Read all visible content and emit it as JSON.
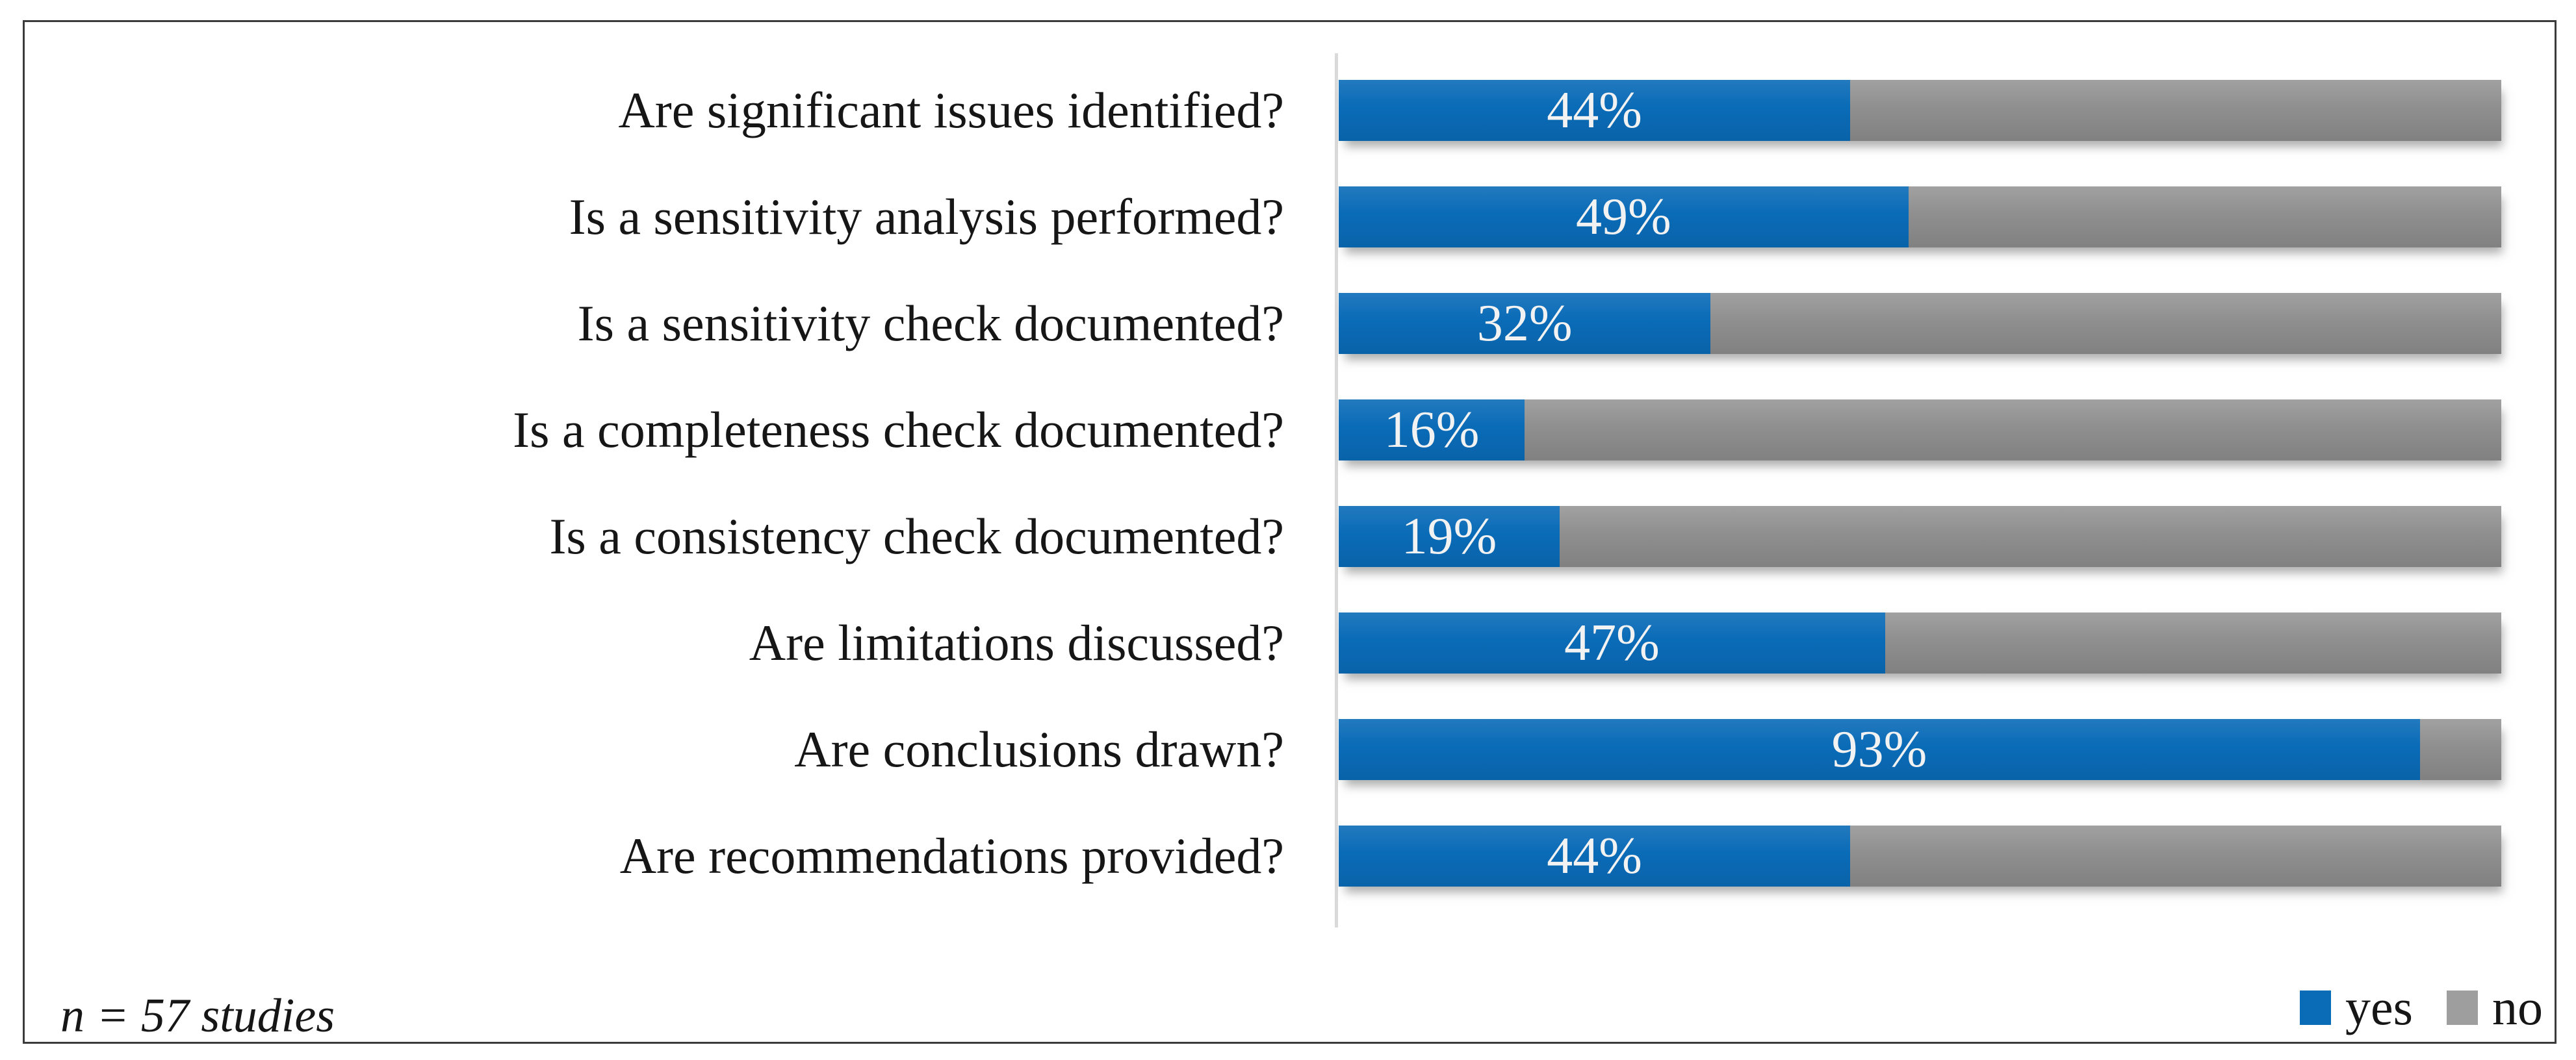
{
  "chart_data": {
    "type": "bar",
    "orientation": "horizontal_stacked",
    "title": "",
    "xlabel": "",
    "ylabel": "",
    "unit": "%",
    "xlim": [
      0,
      100
    ],
    "grid": false,
    "legend_position": "bottom-right",
    "categories": [
      "Are significant issues identified?",
      "Is a sensitivity analysis performed?",
      "Is a sensitivity check documented?",
      "Is a completeness check documented?",
      "Is a consistency check documented?",
      "Are limitations discussed?",
      "Are conclusions drawn?",
      "Are recommendations provided?"
    ],
    "series": [
      {
        "name": "yes",
        "color": "#0a6bb7",
        "values": [
          44,
          49,
          32,
          16,
          19,
          47,
          93,
          44
        ]
      },
      {
        "name": "no",
        "color": "#8f8f8f",
        "values": [
          56,
          51,
          68,
          84,
          81,
          53,
          7,
          56
        ]
      }
    ],
    "value_labels": [
      "44%",
      "49%",
      "32%",
      "16%",
      "19%",
      "47%",
      "93%",
      "44%"
    ],
    "note": "n = 57 studies"
  },
  "legend": {
    "items": [
      {
        "label": "yes",
        "color": "#0a6bb7"
      },
      {
        "label": "no",
        "color": "#9e9e9e"
      }
    ]
  },
  "colors": {
    "yes_blue": "#0a6bb7",
    "no_gray": "#8f8f8f",
    "axis_line": "#dadada",
    "frame_border": "#3b3b3b",
    "value_text": "#f2f2f2"
  }
}
